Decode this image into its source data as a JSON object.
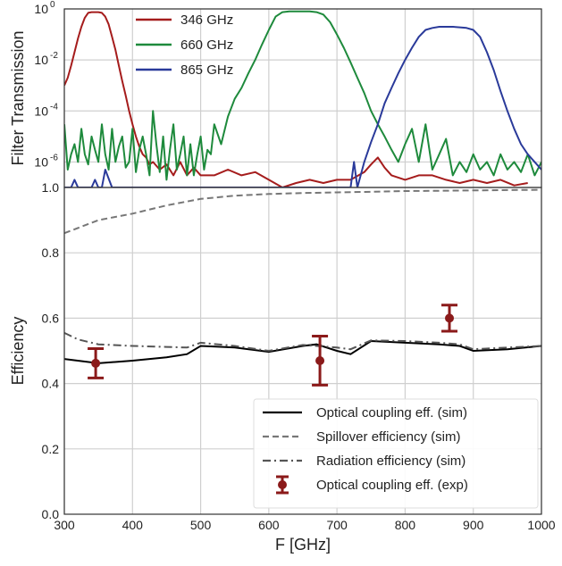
{
  "chart_data": [
    {
      "type": "line",
      "ylabel": "Filter Transmission",
      "yscale": "log",
      "xlim": [
        300,
        1000
      ],
      "ylim": [
        1e-07,
        1
      ],
      "y_tick_labels": [
        "10",
        "10",
        "10",
        "10"
      ],
      "y_tick_exponents": [
        "0",
        "-2",
        "-4",
        "-6"
      ],
      "bottom_tick_label": "1.0",
      "grid": true,
      "legend_position": "top-left",
      "series": [
        {
          "name": "346 GHz",
          "color": "#a51c1c",
          "x": [
            300,
            305,
            310,
            315,
            320,
            325,
            330,
            335,
            340,
            345,
            350,
            355,
            360,
            365,
            370,
            375,
            380,
            385,
            390,
            395,
            400,
            405,
            410,
            415,
            420,
            425,
            430,
            440,
            450,
            460,
            470,
            480,
            490,
            500,
            520,
            540,
            560,
            580,
            600,
            620,
            640,
            660,
            680,
            700,
            720,
            740,
            750,
            760,
            770,
            780,
            800,
            820,
            840,
            860,
            880,
            900,
            920,
            940,
            960,
            980
          ],
          "y": [
            0.001,
            0.002,
            0.006,
            0.02,
            0.07,
            0.2,
            0.45,
            0.7,
            0.75,
            0.75,
            0.75,
            0.7,
            0.5,
            0.25,
            0.08,
            0.025,
            0.006,
            0.0015,
            0.0004,
            0.0001,
            3e-05,
            1e-05,
            4e-06,
            2e-06,
            1.5e-06,
            8e-07,
            1e-06,
            5e-07,
            8e-07,
            3e-07,
            1e-06,
            3e-07,
            6e-07,
            3e-07,
            3e-07,
            5e-07,
            3e-07,
            4e-07,
            2e-07,
            1e-07,
            1.5e-07,
            2e-07,
            1.5e-07,
            2e-07,
            2e-07,
            4e-07,
            8e-07,
            1.5e-06,
            6e-07,
            3e-07,
            2e-07,
            3e-07,
            3e-07,
            2e-07,
            1.5e-07,
            2e-07,
            1.5e-07,
            2e-07,
            1.2e-07,
            1.5e-07
          ]
        },
        {
          "name": "660 GHz",
          "color": "#1e8a3c",
          "x": [
            300,
            305,
            310,
            315,
            320,
            325,
            330,
            335,
            340,
            345,
            350,
            355,
            360,
            365,
            370,
            375,
            380,
            385,
            390,
            395,
            400,
            405,
            410,
            415,
            420,
            425,
            430,
            435,
            440,
            445,
            450,
            455,
            460,
            465,
            470,
            475,
            480,
            485,
            490,
            495,
            500,
            505,
            510,
            515,
            520,
            530,
            540,
            550,
            560,
            570,
            580,
            590,
            600,
            610,
            620,
            630,
            640,
            650,
            660,
            670,
            680,
            690,
            700,
            710,
            720,
            730,
            740,
            750,
            760,
            770,
            780,
            790,
            800,
            810,
            820,
            830,
            840,
            850,
            860,
            870,
            880,
            890,
            900,
            910,
            920,
            930,
            940,
            950,
            960,
            970,
            980,
            990,
            1000
          ],
          "y": [
            3e-05,
            5e-07,
            2e-06,
            5e-06,
            1e-06,
            2e-05,
            2e-06,
            8e-07,
            1e-05,
            3e-06,
            1e-06,
            3e-05,
            2e-06,
            5e-07,
            2e-05,
            1e-06,
            4e-06,
            1e-05,
            6e-07,
            1e-06,
            2e-05,
            4e-07,
            3e-06,
            1e-05,
            2e-06,
            3e-07,
            0.0001,
            5e-06,
            4e-07,
            1e-05,
            2e-07,
            3e-06,
            3e-05,
            5e-07,
            2e-06,
            1e-05,
            3e-07,
            5e-06,
            3e-07,
            2e-06,
            1e-05,
            5e-07,
            3e-06,
            2e-06,
            3e-05,
            5e-06,
            6e-05,
            0.0003,
            0.0008,
            0.003,
            0.01,
            0.04,
            0.15,
            0.5,
            0.75,
            0.8,
            0.8,
            0.8,
            0.8,
            0.75,
            0.6,
            0.3,
            0.1,
            0.03,
            0.008,
            0.002,
            0.0005,
            0.0001,
            3e-05,
            1e-05,
            3e-06,
            1e-06,
            5e-06,
            2e-05,
            1e-06,
            3e-05,
            5e-07,
            2e-06,
            8e-06,
            3e-07,
            1e-06,
            4e-07,
            2e-06,
            5e-07,
            1e-06,
            3e-07,
            2e-06,
            5e-07,
            1e-06,
            4e-07,
            2e-06,
            3e-07,
            1e-06
          ]
        },
        {
          "name": "865 GHz",
          "color": "#2a3a9a",
          "x": [
            300,
            305,
            310,
            315,
            320,
            330,
            335,
            340,
            345,
            350,
            355,
            360,
            370,
            390,
            720,
            725,
            730,
            740,
            750,
            760,
            770,
            780,
            790,
            800,
            810,
            820,
            830,
            840,
            850,
            860,
            870,
            880,
            890,
            900,
            910,
            920,
            930,
            940,
            950,
            960,
            970,
            980,
            990,
            1000
          ],
          "y": [
            1e-07,
            1e-07,
            1e-07,
            2e-07,
            1e-07,
            1e-07,
            1e-07,
            1e-07,
            2e-07,
            1e-07,
            1e-07,
            5e-07,
            1e-07,
            1e-07,
            1e-07,
            1e-06,
            1e-07,
            1e-06,
            6e-06,
            3e-05,
            0.0002,
            0.0008,
            0.003,
            0.01,
            0.03,
            0.08,
            0.15,
            0.18,
            0.2,
            0.2,
            0.2,
            0.19,
            0.18,
            0.15,
            0.08,
            0.02,
            0.004,
            0.0006,
            0.0001,
            2e-05,
            5e-06,
            2e-06,
            1e-06,
            5e-07
          ]
        }
      ]
    },
    {
      "type": "line",
      "xlabel": "F [GHz]",
      "ylabel": "Efficiency",
      "xlim": [
        300,
        1000
      ],
      "ylim": [
        0.0,
        1.0
      ],
      "x_ticks": [
        "300",
        "400",
        "500",
        "600",
        "700",
        "800",
        "900",
        "1000"
      ],
      "y_ticks": [
        "0.0",
        "0.2",
        "0.4",
        "0.6",
        "0.8"
      ],
      "grid": true,
      "legend_position": "bottom-right",
      "series": [
        {
          "name": "Optical coupling eff. (sim)",
          "style": "solid",
          "color": "#000000",
          "x": [
            300,
            350,
            400,
            450,
            480,
            500,
            550,
            600,
            650,
            670,
            700,
            720,
            750,
            800,
            850,
            880,
            900,
            950,
            1000
          ],
          "y": [
            0.475,
            0.462,
            0.47,
            0.48,
            0.49,
            0.515,
            0.51,
            0.497,
            0.515,
            0.52,
            0.5,
            0.49,
            0.53,
            0.525,
            0.52,
            0.515,
            0.5,
            0.505,
            0.515
          ]
        },
        {
          "name": "Spillover efficiency (sim)",
          "style": "dashed",
          "color": "#777777",
          "x": [
            300,
            350,
            400,
            450,
            500,
            550,
            600,
            650,
            700,
            750,
            800,
            850,
            900,
            950,
            1000
          ],
          "y": [
            0.86,
            0.9,
            0.92,
            0.945,
            0.965,
            0.975,
            0.98,
            0.983,
            0.985,
            0.987,
            0.989,
            0.99,
            0.991,
            0.992,
            0.993
          ]
        },
        {
          "name": "Radiation efficiency (sim)",
          "style": "dashdot",
          "color": "#555555",
          "x": [
            300,
            320,
            350,
            400,
            450,
            480,
            500,
            550,
            600,
            650,
            670,
            700,
            720,
            750,
            800,
            850,
            880,
            900,
            950,
            1000
          ],
          "y": [
            0.555,
            0.535,
            0.52,
            0.515,
            0.512,
            0.51,
            0.525,
            0.515,
            0.5,
            0.518,
            0.515,
            0.51,
            0.505,
            0.532,
            0.53,
            0.525,
            0.52,
            0.505,
            0.51,
            0.515
          ]
        },
        {
          "name": "Optical coupling eff. (exp)",
          "style": "errorbar",
          "color": "#8b1a1a",
          "x": [
            346,
            675,
            865
          ],
          "y": [
            0.462,
            0.47,
            0.6
          ],
          "yerr": [
            0.045,
            0.075,
            0.04
          ]
        }
      ]
    }
  ]
}
